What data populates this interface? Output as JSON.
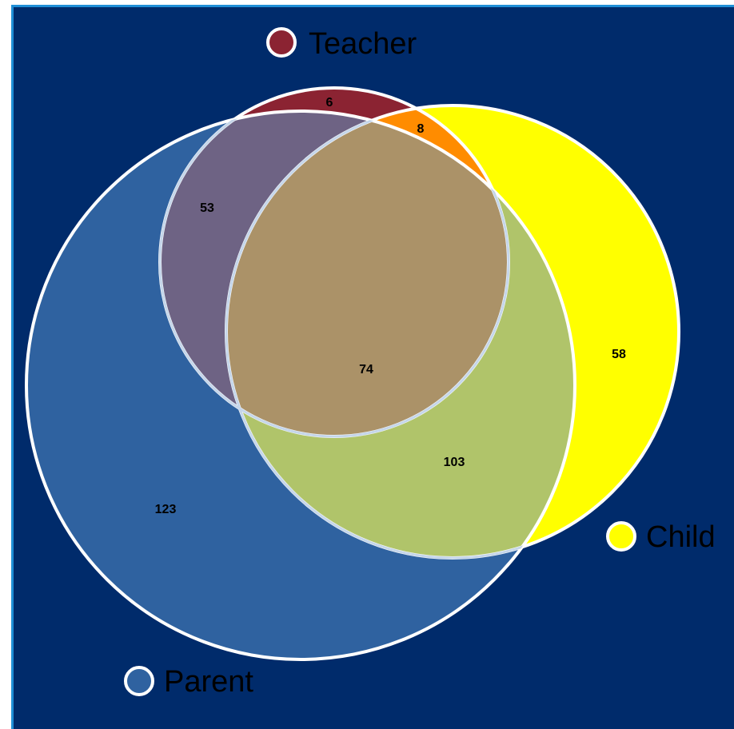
{
  "diagram": {
    "type": "venn",
    "sets": [
      {
        "name": "Teacher",
        "color": "#8b2332"
      },
      {
        "name": "Parent",
        "color": "#2f62a0"
      },
      {
        "name": "Child",
        "color": "#ffff00"
      }
    ],
    "regions": [
      {
        "id": "teacher_only",
        "label": "6"
      },
      {
        "id": "teacher_child",
        "label": "8"
      },
      {
        "id": "teacher_parent",
        "label": "53"
      },
      {
        "id": "all_three",
        "label": "74"
      },
      {
        "id": "child_only",
        "label": "58"
      },
      {
        "id": "parent_child",
        "label": "103"
      },
      {
        "id": "parent_only",
        "label": "123"
      }
    ]
  },
  "colors": {
    "background": "#002b6b",
    "border": "#1f8fd6",
    "outline": "#ffffff",
    "teacher_child_overlap": "#ff8c00",
    "parent_child_overlap": "#b0c46a",
    "teacher_parent_overlap": "#6e6384",
    "all_three_overlap": "#ab9268"
  }
}
